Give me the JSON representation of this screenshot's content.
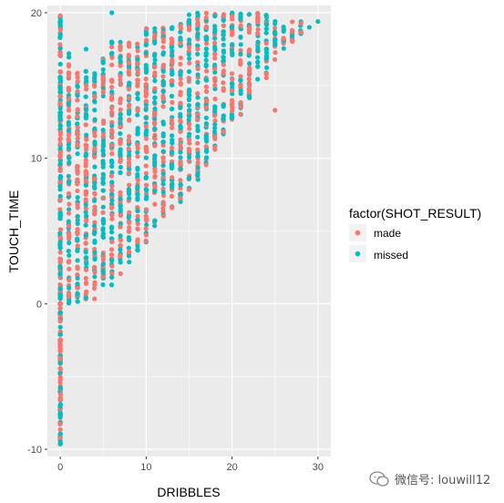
{
  "chart_data": {
    "type": "scatter",
    "xlabel": "DRIBBLES",
    "ylabel": "TOUCH_TIME",
    "xlim": [
      -1.5,
      31.5
    ],
    "ylim": [
      -10.5,
      20.5
    ],
    "x_ticks": [
      0,
      10,
      20,
      30
    ],
    "y_ticks": [
      -10,
      0,
      10,
      20
    ],
    "x_tick_labels": [
      "0",
      "10",
      "20",
      "30"
    ],
    "y_tick_labels": [
      "-10",
      "0",
      "10",
      "20"
    ],
    "grid": true,
    "legend": {
      "title": "factor(SHOT_RESULT)",
      "placement": "right",
      "entries": [
        {
          "label": "made",
          "color": "#F8766D"
        },
        {
          "label": "missed",
          "color": "#00BFC4"
        }
      ]
    },
    "series": [
      {
        "name": "made",
        "color": "#F8766D"
      },
      {
        "name": "missed",
        "color": "#00BFC4"
      }
    ],
    "columns": {
      "comment": "per-dribble-count vertical spread of touch times",
      "x": [
        0,
        1,
        2,
        3,
        4,
        5,
        6,
        7,
        8,
        9,
        10,
        11,
        12,
        13,
        14,
        15,
        16,
        17,
        18,
        19,
        20,
        21,
        22,
        23,
        24,
        25,
        26,
        27,
        28
      ],
      "y_min": [
        -9.8,
        0,
        0,
        0,
        0.3,
        0.8,
        1.2,
        2,
        2.5,
        3.5,
        4,
        5,
        6,
        6.5,
        7,
        7.5,
        8.5,
        9.5,
        10.5,
        11.5,
        12.5,
        13,
        14,
        15,
        15.5,
        16.5,
        17.5,
        18,
        18.5
      ],
      "y_max": [
        19.8,
        17,
        16,
        16,
        16,
        17,
        18,
        18,
        18,
        18,
        19,
        19,
        19,
        19,
        19.5,
        20,
        20,
        20,
        20,
        20,
        20,
        20,
        20,
        20,
        20,
        19.5,
        19.5,
        19.5,
        19.5
      ]
    },
    "outliers": [
      {
        "x": 0,
        "y": 19.8,
        "series": "made"
      },
      {
        "x": 0,
        "y": 19.3,
        "series": "missed"
      },
      {
        "x": 6,
        "y": 20,
        "series": "missed"
      },
      {
        "x": 25,
        "y": 13.3,
        "series": "made"
      },
      {
        "x": 30,
        "y": 19.4,
        "series": "missed"
      },
      {
        "x": 29,
        "y": 19,
        "series": "missed"
      },
      {
        "x": 1,
        "y": 17.2,
        "series": "missed"
      },
      {
        "x": 3,
        "y": 17.5,
        "series": "missed"
      }
    ]
  },
  "watermark": {
    "text": "微信号: louwill12"
  }
}
